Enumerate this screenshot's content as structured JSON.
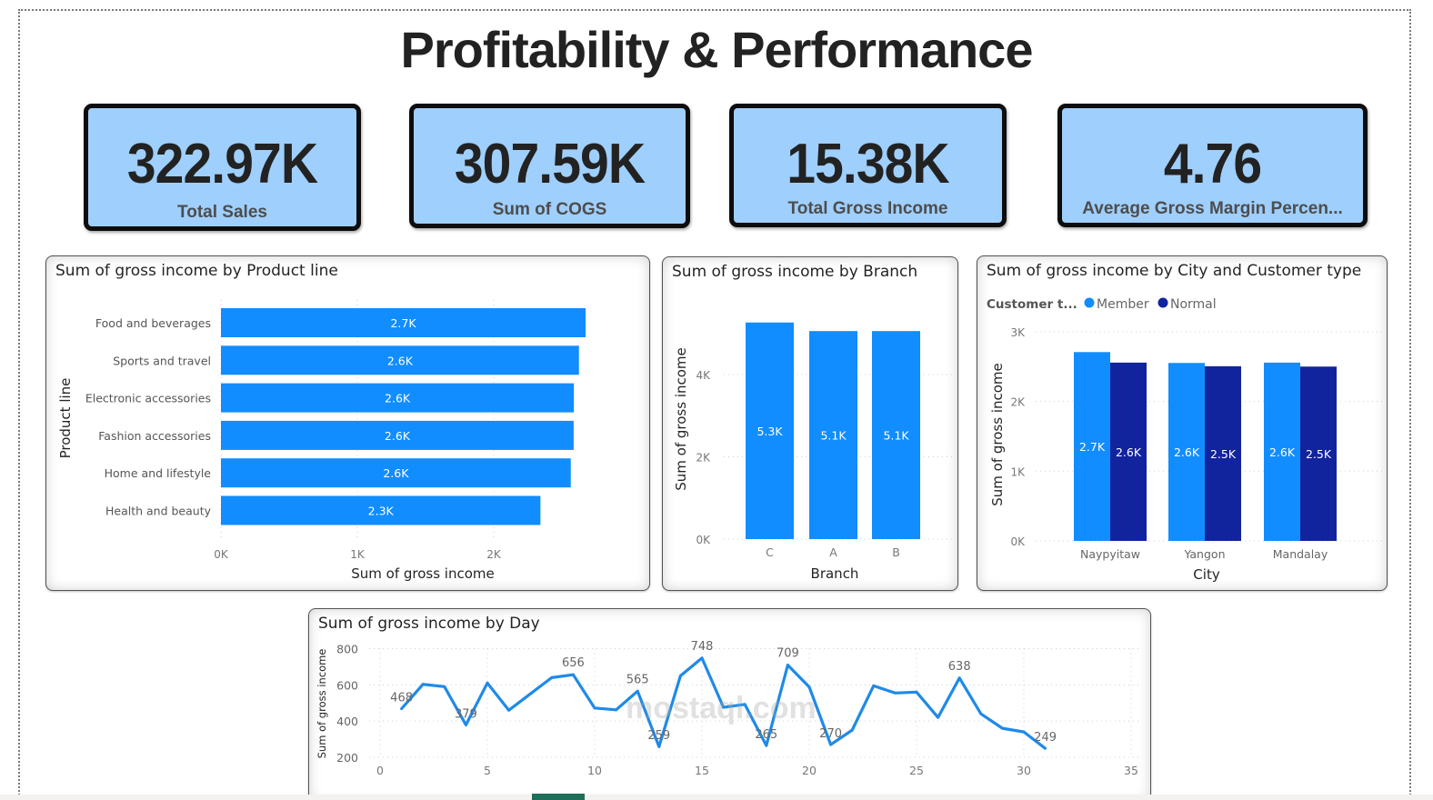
{
  "page": {
    "title": "Profitability & Performance"
  },
  "kpis": [
    {
      "value": "322.97K",
      "label": "Total Sales"
    },
    {
      "value": "307.59K",
      "label": "Sum of COGS"
    },
    {
      "value": "15.38K",
      "label": "Total Gross Income"
    },
    {
      "value": "4.76",
      "label": "Average Gross Margin Percen..."
    }
  ],
  "colors": {
    "member": "#118dff",
    "normal": "#12239e",
    "line": "#1f8ae8",
    "kpi_bg": "#9fcffd"
  },
  "watermark": "mostaql.com",
  "chart_data": [
    {
      "id": "product_line",
      "type": "bar",
      "orientation": "horizontal",
      "title": "Sum of gross income by Product line",
      "xlabel": "Sum of gross income",
      "ylabel": "Product line",
      "categories": [
        "Food and beverages",
        "Sports and travel",
        "Electronic accessories",
        "Fashion accessories",
        "Home and lifestyle",
        "Health and beauty"
      ],
      "values": [
        2673.56,
        2624.9,
        2587.5,
        2585.99,
        2564.85,
        2342.56
      ],
      "data_labels": [
        "2.7K",
        "2.6K",
        "2.6K",
        "2.6K",
        "2.6K",
        "2.3K"
      ],
      "xticks": [
        "0K",
        "1K",
        "2K"
      ],
      "xtick_values": [
        0,
        1000,
        2000
      ],
      "xlim": [
        0,
        2800
      ],
      "grid": true
    },
    {
      "id": "branch",
      "type": "bar",
      "title": "Sum of gross income by Branch",
      "xlabel": "Branch",
      "ylabel": "Sum of gross income",
      "categories": [
        "C",
        "A",
        "B"
      ],
      "values": [
        5265.18,
        5057.03,
        5057.16
      ],
      "data_labels": [
        "5.3K",
        "5.1K",
        "5.1K"
      ],
      "yticks": [
        "0K",
        "2K",
        "4K"
      ],
      "ytick_values": [
        0,
        2000,
        4000
      ],
      "ylim": [
        0,
        5400
      ],
      "grid": true
    },
    {
      "id": "city_customer",
      "type": "bar",
      "title": "Sum of gross income by City and Customer type",
      "xlabel": "City",
      "ylabel": "Sum of gross income",
      "legend_title": "Customer t...",
      "legend_position": "top-left",
      "categories": [
        "Naypyitaw",
        "Yangon",
        "Mandalay"
      ],
      "series": [
        {
          "name": "Member",
          "values": [
            2708,
            2552,
            2557
          ],
          "data_labels": [
            "2.7K",
            "2.6K",
            "2.6K"
          ]
        },
        {
          "name": "Normal",
          "values": [
            2557,
            2505,
            2500
          ],
          "data_labels": [
            "2.6K",
            "2.5K",
            "2.5K"
          ]
        }
      ],
      "yticks": [
        "0K",
        "1K",
        "2K",
        "3K"
      ],
      "ytick_values": [
        0,
        1000,
        2000,
        3000
      ],
      "ylim": [
        0,
        3000
      ],
      "grid": true
    },
    {
      "id": "day",
      "type": "line",
      "title": "Sum of gross income by Day",
      "xlabel": "",
      "ylabel": "Sum of gross income",
      "x": [
        1,
        2,
        3,
        4,
        5,
        6,
        7,
        8,
        9,
        10,
        11,
        12,
        13,
        14,
        15,
        16,
        17,
        18,
        19,
        20,
        21,
        22,
        23,
        24,
        25,
        26,
        27,
        28,
        29,
        30,
        31
      ],
      "values": [
        468,
        603,
        590,
        379,
        610,
        460,
        550,
        640,
        656,
        472,
        462,
        565,
        259,
        650,
        748,
        476,
        492,
        265,
        709,
        588,
        270,
        350,
        595,
        555,
        560,
        420,
        638,
        440,
        360,
        340,
        249
      ],
      "labeled_points": {
        "1": "468",
        "4": "379",
        "9": "656",
        "12": "565",
        "13": "259",
        "15": "748",
        "18": "265",
        "19": "709",
        "21": "270",
        "27": "638",
        "31": "249"
      },
      "xticks": [
        "0",
        "5",
        "10",
        "15",
        "20",
        "25",
        "30",
        "35"
      ],
      "xtick_values": [
        0,
        5,
        10,
        15,
        20,
        25,
        30,
        35
      ],
      "xlim": [
        0,
        35
      ],
      "yticks": [
        "200",
        "400",
        "600",
        "800"
      ],
      "ytick_values": [
        200,
        400,
        600,
        800
      ],
      "ylim": [
        200,
        800
      ],
      "grid": true
    }
  ]
}
